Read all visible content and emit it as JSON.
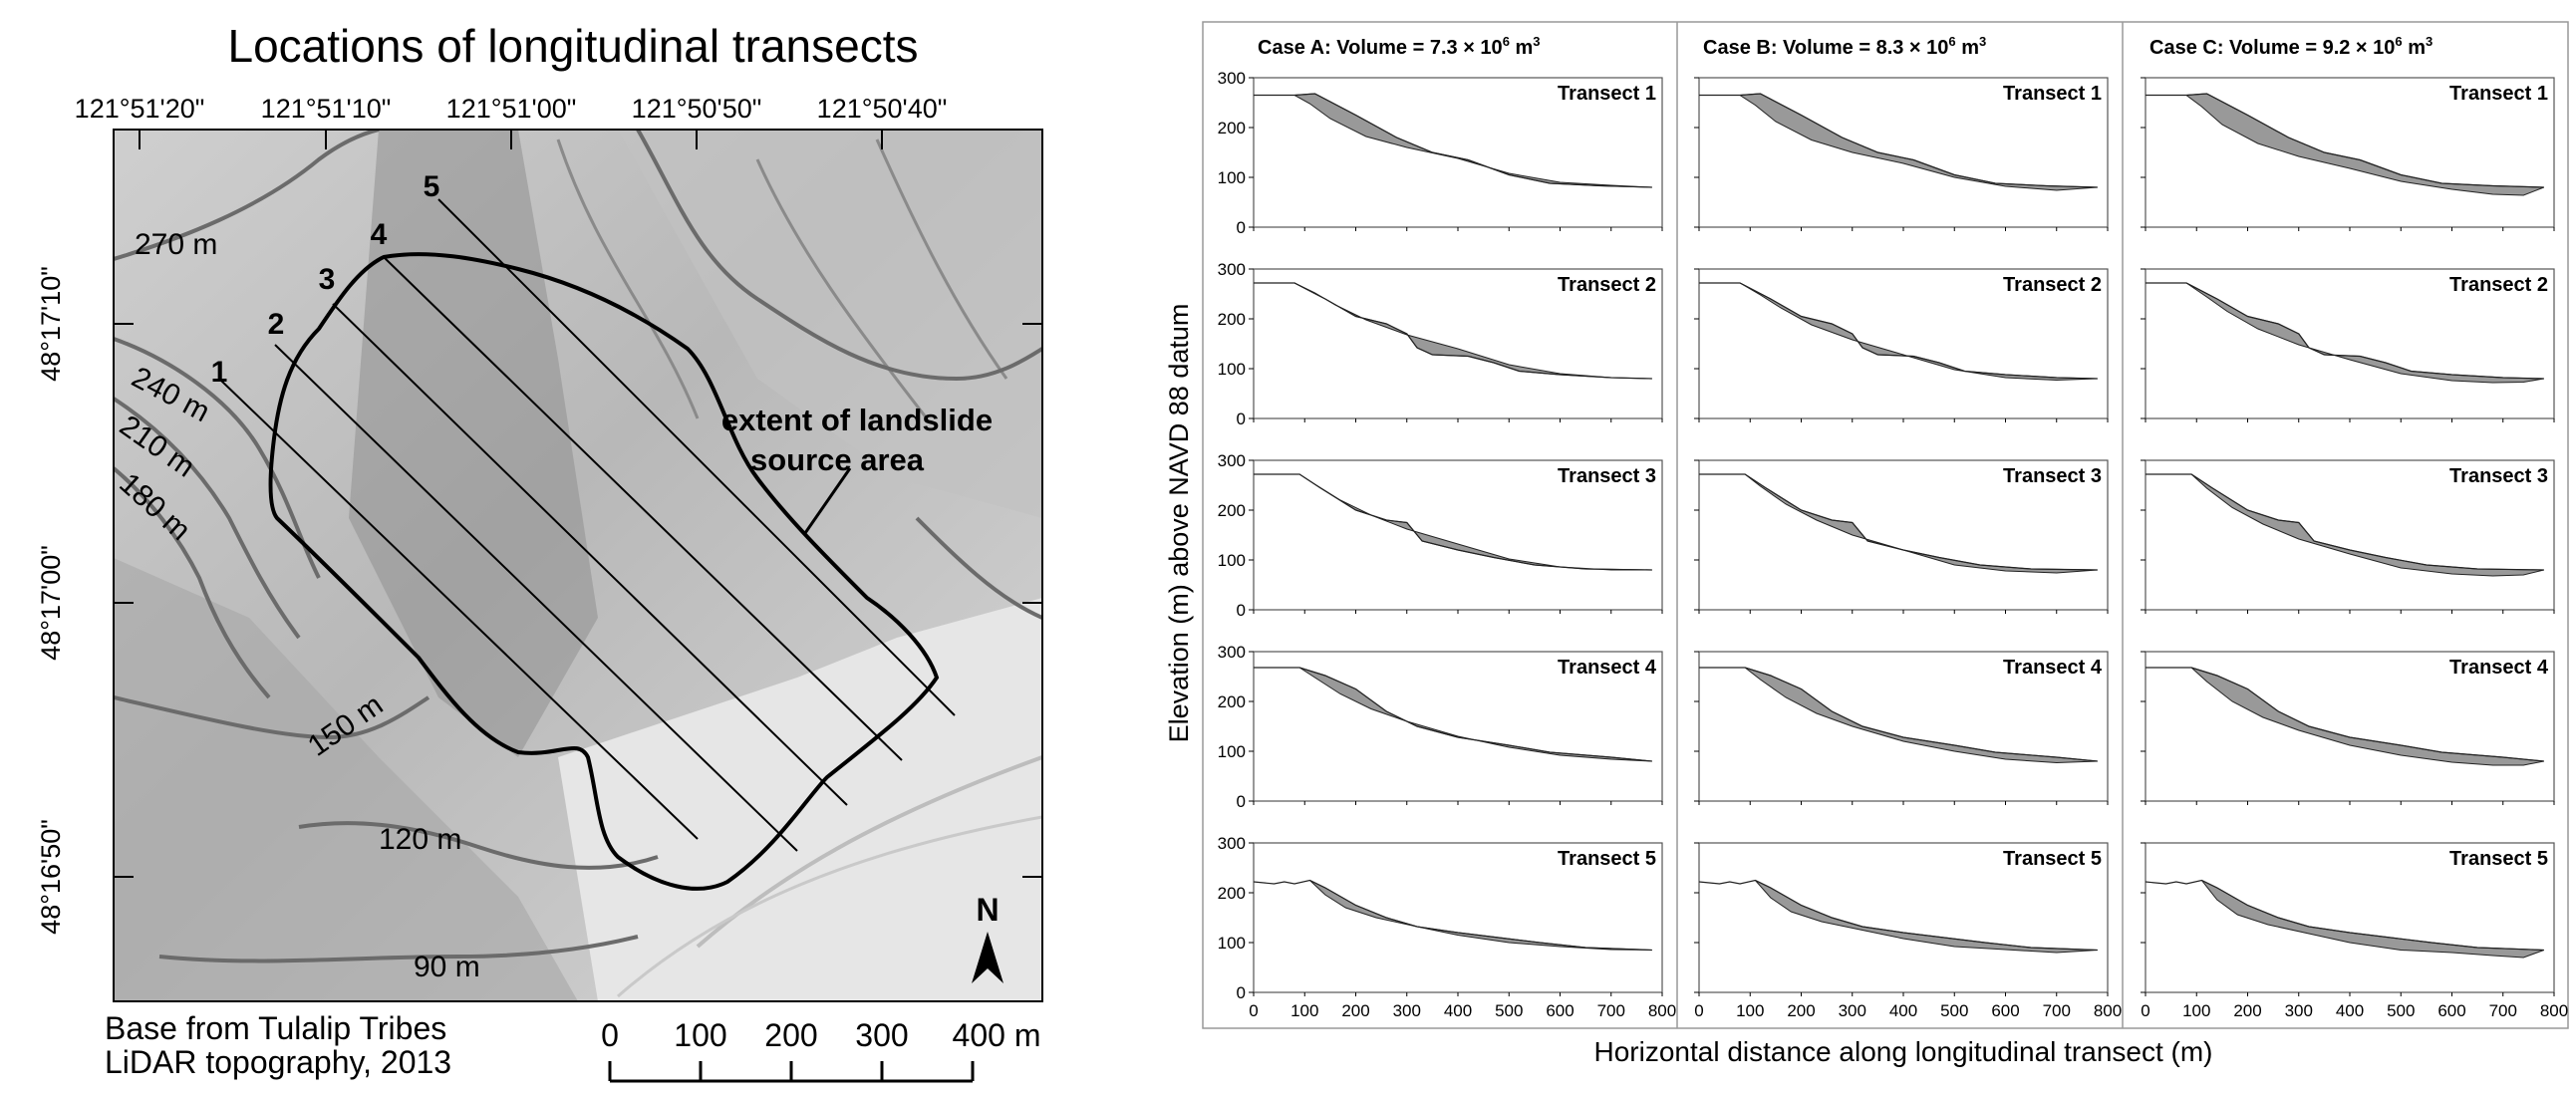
{
  "map": {
    "title": "Locations of longitudinal transects",
    "longitudes": [
      "121°51'20\"",
      "121°51'10\"",
      "121°51'00\"",
      "121°50'50\"",
      "121°50'40\""
    ],
    "latitudes": [
      "48°17'10\"",
      "48°17'00\"",
      "48°16'50\""
    ],
    "contours": [
      "270 m",
      "240 m",
      "210 m",
      "180 m",
      "150 m",
      "120 m",
      "90 m"
    ],
    "transect_numbers": [
      "1",
      "2",
      "3",
      "4",
      "5"
    ],
    "annotation": [
      "extent of landslide",
      "source area"
    ],
    "north_label": "N",
    "credit": [
      "Base from Tulalip Tribes",
      "LiDAR topography, 2013"
    ],
    "scale_labels": [
      "0",
      "100",
      "200",
      "300",
      "400 m"
    ]
  },
  "chart_data": {
    "type": "area",
    "ylabel": "Elevation (m) above NAVD 88 datum",
    "xlabel": "Horizontal distance along longitudinal transect (m)",
    "xlim": [
      0,
      800
    ],
    "ylim": [
      0,
      300
    ],
    "x_ticks": [
      "0",
      "100",
      "200",
      "300",
      "400",
      "500",
      "600",
      "700",
      "800"
    ],
    "y_ticks": [
      "0",
      "100",
      "200",
      "300"
    ],
    "cases": [
      {
        "title_prefix": "Case A: Volume = 7.3 × 10",
        "exp": "6",
        "unit": " m",
        "unit_exp": "3"
      },
      {
        "title_prefix": "Case B: Volume = 8.3 × 10",
        "exp": "6",
        "unit": " m",
        "unit_exp": "3"
      },
      {
        "title_prefix": "Case C: Volume = 9.2 × 10",
        "exp": "6",
        "unit": " m",
        "unit_exp": "3"
      }
    ],
    "transect_labels": [
      "Transect 1",
      "Transect 2",
      "Transect 3",
      "Transect 4",
      "Transect 5"
    ],
    "fill_color": "#999999",
    "transects": [
      {
        "surface": [
          [
            0,
            265
          ],
          [
            80,
            265
          ],
          [
            120,
            268
          ],
          [
            200,
            225
          ],
          [
            280,
            180
          ],
          [
            350,
            150
          ],
          [
            420,
            135
          ],
          [
            500,
            105
          ],
          [
            580,
            88
          ],
          [
            680,
            83
          ],
          [
            780,
            80
          ]
        ],
        "bed": [
          [
            80,
            265
          ],
          [
            110,
            248
          ],
          [
            150,
            218
          ],
          [
            220,
            182
          ],
          [
            300,
            160
          ],
          [
            400,
            138
          ],
          [
            500,
            108
          ],
          [
            600,
            90
          ],
          [
            700,
            84
          ],
          [
            780,
            80
          ]
        ],
        "bed_thick": [
          [
            80,
            265
          ],
          [
            110,
            245
          ],
          [
            150,
            212
          ],
          [
            220,
            175
          ],
          [
            300,
            150
          ],
          [
            400,
            128
          ],
          [
            500,
            100
          ],
          [
            600,
            82
          ],
          [
            700,
            74
          ],
          [
            780,
            80
          ]
        ],
        "bed_deep": [
          [
            80,
            265
          ],
          [
            110,
            242
          ],
          [
            150,
            206
          ],
          [
            220,
            168
          ],
          [
            300,
            142
          ],
          [
            400,
            118
          ],
          [
            500,
            92
          ],
          [
            600,
            76
          ],
          [
            680,
            66
          ],
          [
            740,
            64
          ],
          [
            780,
            80
          ]
        ]
      },
      {
        "surface": [
          [
            0,
            272
          ],
          [
            80,
            272
          ],
          [
            140,
            240
          ],
          [
            200,
            205
          ],
          [
            260,
            190
          ],
          [
            300,
            170
          ],
          [
            320,
            142
          ],
          [
            350,
            128
          ],
          [
            420,
            125
          ],
          [
            470,
            112
          ],
          [
            520,
            95
          ],
          [
            600,
            88
          ],
          [
            700,
            82
          ],
          [
            780,
            80
          ]
        ],
        "bed": [
          [
            80,
            272
          ],
          [
            120,
            252
          ],
          [
            160,
            228
          ],
          [
            220,
            198
          ],
          [
            300,
            168
          ],
          [
            400,
            140
          ],
          [
            500,
            108
          ],
          [
            600,
            90
          ],
          [
            700,
            82
          ],
          [
            780,
            80
          ]
        ],
        "bed_thick": [
          [
            80,
            272
          ],
          [
            120,
            248
          ],
          [
            160,
            222
          ],
          [
            220,
            188
          ],
          [
            300,
            158
          ],
          [
            400,
            128
          ],
          [
            500,
            98
          ],
          [
            600,
            82
          ],
          [
            700,
            77
          ],
          [
            780,
            80
          ]
        ],
        "bed_deep": [
          [
            80,
            272
          ],
          [
            120,
            244
          ],
          [
            160,
            215
          ],
          [
            220,
            180
          ],
          [
            300,
            148
          ],
          [
            400,
            118
          ],
          [
            500,
            90
          ],
          [
            600,
            76
          ],
          [
            680,
            72
          ],
          [
            740,
            73
          ],
          [
            780,
            80
          ]
        ]
      },
      {
        "surface": [
          [
            0,
            272
          ],
          [
            90,
            272
          ],
          [
            130,
            245
          ],
          [
            200,
            200
          ],
          [
            260,
            180
          ],
          [
            300,
            175
          ],
          [
            330,
            138
          ],
          [
            400,
            120
          ],
          [
            470,
            105
          ],
          [
            550,
            90
          ],
          [
            650,
            82
          ],
          [
            780,
            80
          ]
        ],
        "bed": [
          [
            90,
            272
          ],
          [
            120,
            252
          ],
          [
            170,
            220
          ],
          [
            230,
            190
          ],
          [
            300,
            162
          ],
          [
            400,
            132
          ],
          [
            500,
            102
          ],
          [
            600,
            86
          ],
          [
            700,
            80
          ],
          [
            780,
            80
          ]
        ],
        "bed_thick": [
          [
            90,
            272
          ],
          [
            120,
            248
          ],
          [
            170,
            212
          ],
          [
            230,
            180
          ],
          [
            300,
            150
          ],
          [
            400,
            120
          ],
          [
            500,
            90
          ],
          [
            600,
            78
          ],
          [
            700,
            74
          ],
          [
            780,
            80
          ]
        ],
        "bed_deep": [
          [
            90,
            272
          ],
          [
            120,
            244
          ],
          [
            170,
            205
          ],
          [
            230,
            172
          ],
          [
            300,
            142
          ],
          [
            400,
            112
          ],
          [
            500,
            84
          ],
          [
            600,
            72
          ],
          [
            680,
            68
          ],
          [
            740,
            70
          ],
          [
            780,
            80
          ]
        ]
      },
      {
        "surface": [
          [
            0,
            268
          ],
          [
            90,
            268
          ],
          [
            140,
            252
          ],
          [
            200,
            225
          ],
          [
            260,
            180
          ],
          [
            320,
            150
          ],
          [
            400,
            128
          ],
          [
            500,
            112
          ],
          [
            580,
            98
          ],
          [
            700,
            88
          ],
          [
            780,
            80
          ]
        ],
        "bed": [
          [
            90,
            268
          ],
          [
            120,
            248
          ],
          [
            170,
            215
          ],
          [
            230,
            185
          ],
          [
            300,
            160
          ],
          [
            400,
            130
          ],
          [
            500,
            108
          ],
          [
            600,
            92
          ],
          [
            700,
            84
          ],
          [
            780,
            80
          ]
        ],
        "bed_thick": [
          [
            90,
            268
          ],
          [
            120,
            244
          ],
          [
            170,
            208
          ],
          [
            230,
            176
          ],
          [
            300,
            150
          ],
          [
            400,
            120
          ],
          [
            500,
            100
          ],
          [
            600,
            84
          ],
          [
            700,
            77
          ],
          [
            780,
            80
          ]
        ],
        "bed_deep": [
          [
            90,
            268
          ],
          [
            120,
            240
          ],
          [
            170,
            200
          ],
          [
            230,
            168
          ],
          [
            300,
            142
          ],
          [
            400,
            112
          ],
          [
            500,
            92
          ],
          [
            600,
            78
          ],
          [
            680,
            72
          ],
          [
            740,
            72
          ],
          [
            780,
            80
          ]
        ]
      },
      {
        "surface": [
          [
            0,
            222
          ],
          [
            40,
            218
          ],
          [
            60,
            222
          ],
          [
            80,
            218
          ],
          [
            110,
            225
          ],
          [
            140,
            210
          ],
          [
            200,
            175
          ],
          [
            260,
            150
          ],
          [
            320,
            132
          ],
          [
            400,
            120
          ],
          [
            480,
            110
          ],
          [
            560,
            100
          ],
          [
            650,
            90
          ],
          [
            780,
            85
          ]
        ],
        "bed": [
          [
            110,
            225
          ],
          [
            140,
            196
          ],
          [
            180,
            170
          ],
          [
            240,
            150
          ],
          [
            320,
            132
          ],
          [
            400,
            115
          ],
          [
            500,
            100
          ],
          [
            600,
            92
          ],
          [
            700,
            86
          ],
          [
            780,
            85
          ]
        ],
        "bed_thick": [
          [
            110,
            225
          ],
          [
            140,
            190
          ],
          [
            180,
            162
          ],
          [
            240,
            142
          ],
          [
            320,
            125
          ],
          [
            400,
            108
          ],
          [
            500,
            92
          ],
          [
            600,
            86
          ],
          [
            700,
            80
          ],
          [
            780,
            85
          ]
        ],
        "bed_deep": [
          [
            110,
            225
          ],
          [
            140,
            186
          ],
          [
            180,
            156
          ],
          [
            240,
            136
          ],
          [
            320,
            118
          ],
          [
            400,
            100
          ],
          [
            500,
            85
          ],
          [
            600,
            80
          ],
          [
            680,
            74
          ],
          [
            740,
            70
          ],
          [
            780,
            85
          ]
        ]
      }
    ]
  }
}
